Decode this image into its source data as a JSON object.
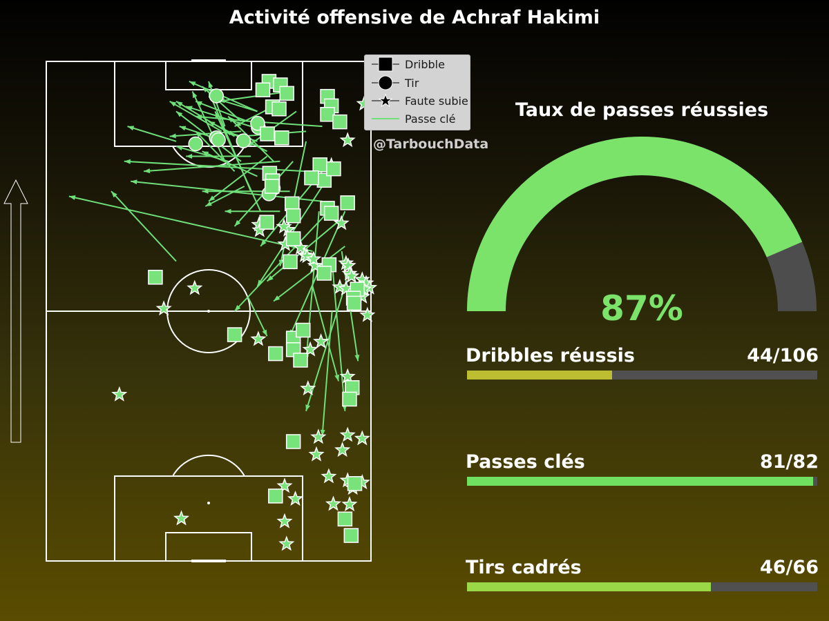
{
  "title": "Activité offensive de Achraf Hakimi",
  "credit": "@TarbouchData",
  "legend": [
    {
      "label": "Dribble",
      "marker": "square"
    },
    {
      "label": "Tir",
      "marker": "circle"
    },
    {
      "label": "Faute subie",
      "marker": "star"
    },
    {
      "label": "Passe clé",
      "marker": "line"
    }
  ],
  "colors": {
    "marker_fill": "#78e37a",
    "pass_line": "#6fe07a",
    "gauge_fill": "#7be36a",
    "gauge_rest": "#4d4d4d",
    "track": "#505050"
  },
  "gauge": {
    "title": "Taux de passes réussies",
    "value_label": "87%",
    "value": 0.87
  },
  "stats": [
    {
      "label": "Dribbles réussis",
      "value_label": "44/106",
      "value": 44,
      "total": 106,
      "color": "#bdbd32"
    },
    {
      "label": "Passes clés",
      "value_label": "81/82",
      "value": 81,
      "total": 82,
      "color": "#6fe060"
    },
    {
      "label": "Tirs cadrés",
      "value_label": "46/66",
      "value": 46,
      "total": 66,
      "color": "#9ad848"
    }
  ],
  "chart_data": {
    "type": "scatter",
    "coordinate_system": "pitch 0-100 (x across width, y along length toward attacking goal)",
    "series": [
      {
        "name": "Dribble",
        "marker": "square",
        "points": [
          [
            68.6,
            96.0
          ],
          [
            72.1,
            95.3
          ],
          [
            66.7,
            94.3
          ],
          [
            74.1,
            93.6
          ],
          [
            69.7,
            90.9
          ],
          [
            86.6,
            93.0
          ],
          [
            87.8,
            91.1
          ],
          [
            86.6,
            89.4
          ],
          [
            90.4,
            87.9
          ],
          [
            71.7,
            90.5
          ],
          [
            68.1,
            85.5
          ],
          [
            72.5,
            84.7
          ],
          [
            86.6,
            70.6
          ],
          [
            87.8,
            69.6
          ],
          [
            68.8,
            77.6
          ],
          [
            69.7,
            76.1
          ],
          [
            84.3,
            79.3
          ],
          [
            85.6,
            76.2
          ],
          [
            81.7,
            76.7
          ],
          [
            88.5,
            78.5
          ],
          [
            92.8,
            71.7
          ],
          [
            69.5,
            75.0
          ],
          [
            75.7,
            71.5
          ],
          [
            76.1,
            69.1
          ],
          [
            67.9,
            67.8
          ],
          [
            76.1,
            64.5
          ],
          [
            75.1,
            59.9
          ],
          [
            87.1,
            59.3
          ],
          [
            85.6,
            57.6
          ],
          [
            95.8,
            54.4
          ],
          [
            94.6,
            52.6
          ],
          [
            33.6,
            56.8
          ],
          [
            58.0,
            45.3
          ],
          [
            76.1,
            44.6
          ],
          [
            79.1,
            46.2
          ],
          [
            94.8,
            51.6
          ],
          [
            94.2,
            34.7
          ],
          [
            76.1,
            42.3
          ],
          [
            78.3,
            40.2
          ],
          [
            70.6,
            41.5
          ],
          [
            93.4,
            32.4
          ],
          [
            70.6,
            13.0
          ],
          [
            76.1,
            23.9
          ],
          [
            92.0,
            8.4
          ],
          [
            95.0,
            15.5
          ],
          [
            93.9,
            5.1
          ]
        ]
      },
      {
        "name": "Tir",
        "marker": "circle",
        "points": [
          [
            52.4,
            93.1
          ],
          [
            52.4,
            84.7
          ],
          [
            46.0,
            83.5
          ],
          [
            53.0,
            84.3
          ],
          [
            60.7,
            84.1
          ],
          [
            65.3,
            86.8
          ],
          [
            65.1,
            87.6
          ],
          [
            69.9,
            74.6
          ],
          [
            68.6,
            73.5
          ]
        ]
      },
      {
        "name": "Faute subie",
        "marker": "star",
        "points": [
          [
            97.9,
            91.5
          ],
          [
            92.8,
            84.2
          ],
          [
            87.8,
            79.2
          ],
          [
            90.9,
            67.6
          ],
          [
            74.5,
            66.3
          ],
          [
            74.8,
            59.7
          ],
          [
            90.4,
            54.8
          ],
          [
            78.3,
            62.7
          ],
          [
            79.6,
            61.2
          ],
          [
            80.3,
            61.0
          ],
          [
            98.9,
            49.2
          ],
          [
            82.8,
            59.1
          ],
          [
            82.3,
            60.4
          ],
          [
            92.3,
            59.6
          ],
          [
            93.0,
            59.1
          ],
          [
            93.4,
            57.5
          ],
          [
            94.0,
            57.0
          ],
          [
            97.3,
            56.3
          ],
          [
            98.5,
            55.6
          ],
          [
            92.3,
            54.5
          ],
          [
            99.5,
            54.7
          ],
          [
            97.3,
            52.9
          ],
          [
            97.9,
            54.4
          ],
          [
            45.7,
            54.6
          ],
          [
            36.2,
            50.5
          ],
          [
            65.5,
            67.3
          ],
          [
            65.7,
            66.2
          ],
          [
            73.2,
            66.9
          ],
          [
            73.6,
            63.4
          ],
          [
            65.3,
            44.4
          ],
          [
            84.6,
            43.9
          ],
          [
            81.3,
            42.3
          ],
          [
            92.8,
            36.9
          ],
          [
            22.5,
            33.3
          ],
          [
            83.2,
            21.3
          ],
          [
            80.6,
            34.5
          ],
          [
            92.8,
            25.2
          ],
          [
            97.3,
            24.5
          ],
          [
            83.8,
            24.8
          ],
          [
            91.2,
            22.2
          ],
          [
            88.4,
            11.4
          ],
          [
            87.0,
            16.9
          ],
          [
            92.8,
            16.1
          ],
          [
            97.3,
            15.7
          ],
          [
            94.4,
            14.6
          ],
          [
            73.4,
            15.0
          ],
          [
            76.7,
            12.4
          ],
          [
            93.4,
            11.3
          ],
          [
            74.0,
            3.4
          ],
          [
            73.4,
            7.9
          ],
          [
            41.6,
            8.5
          ]
        ]
      },
      {
        "name": "Passe clé",
        "marker": "line",
        "passes": [
          [
            44.0,
            96.0,
            65.0,
            90.0
          ],
          [
            48.0,
            95.0,
            60.0,
            88.0
          ],
          [
            50.0,
            96.0,
            55.0,
            87.0
          ],
          [
            53.0,
            92.0,
            75.0,
            94.0
          ],
          [
            50.0,
            93.0,
            65.0,
            90.0
          ],
          [
            46.0,
            92.0,
            62.0,
            88.0
          ],
          [
            40.0,
            92.0,
            58.0,
            85.0
          ],
          [
            43.0,
            91.0,
            68.0,
            86.0
          ],
          [
            46.0,
            89.0,
            63.0,
            88.0
          ],
          [
            41.0,
            87.0,
            55.0,
            84.0
          ],
          [
            25.0,
            87.0,
            40.0,
            84.0
          ],
          [
            40.0,
            90.0,
            60.0,
            80.0
          ],
          [
            46.0,
            86.0,
            58.0,
            78.0
          ],
          [
            50.0,
            88.0,
            68.0,
            82.0
          ],
          [
            38.0,
            85.0,
            60.0,
            86.0
          ],
          [
            40.0,
            83.0,
            56.0,
            80.0
          ],
          [
            43.0,
            81.0,
            63.0,
            81.0
          ],
          [
            48.0,
            82.0,
            65.0,
            77.0
          ],
          [
            55.0,
            86.0,
            65.0,
            84.0
          ],
          [
            58.0,
            87.0,
            70.0,
            91.0
          ],
          [
            60.0,
            85.0,
            80.0,
            86.0
          ],
          [
            62.0,
            83.0,
            77.0,
            90.0
          ],
          [
            38.0,
            92.0,
            54.0,
            86.0
          ],
          [
            45.0,
            94.0,
            55.0,
            80.0
          ],
          [
            50.0,
            94.0,
            63.0,
            74.0
          ],
          [
            52.0,
            90.0,
            66.0,
            70.0
          ],
          [
            56.0,
            89.0,
            70.0,
            80.0
          ],
          [
            63.0,
            88.0,
            85.0,
            87.0
          ],
          [
            24.0,
            80.0,
            80.0,
            78.0
          ],
          [
            30.0,
            78.0,
            72.0,
            80.0
          ],
          [
            26.0,
            76.0,
            85.0,
            72.0
          ],
          [
            20.0,
            74.0,
            40.0,
            60.0
          ],
          [
            7.0,
            73.0,
            82.0,
            62.0
          ],
          [
            48.0,
            74.0,
            75.0,
            74.0
          ],
          [
            49.0,
            71.0,
            61.0,
            75.0
          ],
          [
            50.0,
            72.0,
            68.0,
            81.0
          ],
          [
            55.0,
            70.0,
            72.0,
            70.0
          ],
          [
            58.0,
            67.0,
            76.0,
            80.0
          ],
          [
            66.0,
            63.0,
            85.0,
            78.0
          ],
          [
            72.0,
            59.0,
            80.0,
            84.0
          ],
          [
            65.0,
            55.0,
            85.0,
            75.0
          ],
          [
            68.0,
            56.0,
            90.0,
            68.0
          ],
          [
            70.0,
            52.0,
            92.0,
            63.0
          ],
          [
            58.0,
            50.0,
            87.0,
            70.0
          ],
          [
            75.0,
            45.0,
            92.0,
            70.0
          ],
          [
            80.0,
            40.0,
            84.0,
            70.0
          ],
          [
            90.0,
            36.0,
            82.0,
            55.0
          ],
          [
            92.0,
            30.0,
            88.0,
            60.0
          ],
          [
            85.0,
            25.0,
            88.0,
            50.0
          ],
          [
            80.0,
            30.0,
            92.0,
            55.0
          ],
          [
            96.0,
            40.0,
            91.0,
            62.0
          ],
          [
            68.0,
            45.0,
            62.0,
            53.0
          ]
        ]
      }
    ]
  }
}
